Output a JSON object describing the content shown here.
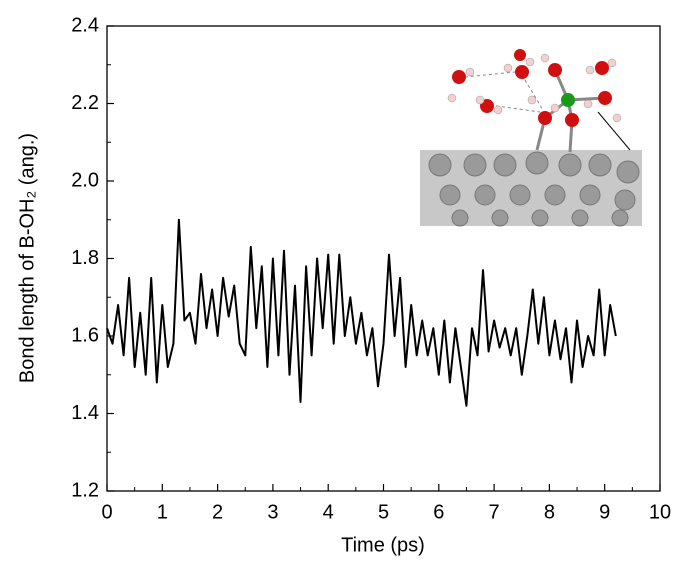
{
  "chart_data": {
    "type": "line",
    "xlabel": "Time (ps)",
    "ylabel": "Bond length of B-OH₂ (ang.)",
    "xlim": [
      0,
      10
    ],
    "xticks": [
      0,
      1,
      2,
      3,
      4,
      5,
      6,
      7,
      8,
      9,
      10
    ],
    "ylim": [
      1.2,
      2.4
    ],
    "yticks": [
      1.2,
      1.4,
      1.6,
      1.8,
      {
        "value": 2,
        "label": "2.0"
      },
      2.2,
      2.4
    ],
    "series": [
      {
        "color": "#000000",
        "x": [
          0,
          0.1,
          0.2,
          0.3,
          0.4,
          0.5,
          0.6,
          0.7,
          0.8,
          0.9,
          1,
          1.1,
          1.2,
          1.3,
          1.4,
          1.5,
          1.6,
          1.7,
          1.8,
          1.9,
          2,
          2.1,
          2.2,
          2.3,
          2.4,
          2.5,
          2.6,
          2.7,
          2.8,
          2.9,
          3,
          3.1,
          3.2,
          3.3,
          3.4,
          3.5,
          3.6,
          3.7,
          3.8,
          3.9,
          4,
          4.1,
          4.2,
          4.3,
          4.4,
          4.5,
          4.6,
          4.7,
          4.8,
          4.9,
          5,
          5.1,
          5.2,
          5.3,
          5.4,
          5.5,
          5.6,
          5.7,
          5.8,
          5.9,
          6,
          6.1,
          6.2,
          6.3,
          6.4,
          6.5,
          6.6,
          6.7,
          6.8,
          6.9,
          7,
          7.1,
          7.2,
          7.3,
          7.4,
          7.5,
          7.6,
          7.7,
          7.8,
          7.9,
          8,
          8.1,
          8.2,
          8.3,
          8.4,
          8.5,
          8.6,
          8.7,
          8.8,
          8.9,
          9,
          9.1,
          9.2
        ],
        "values": [
          1.62,
          1.58,
          1.68,
          1.55,
          1.75,
          1.52,
          1.66,
          1.5,
          1.75,
          1.48,
          1.68,
          1.52,
          1.58,
          1.9,
          1.64,
          1.66,
          1.58,
          1.76,
          1.62,
          1.72,
          1.6,
          1.75,
          1.65,
          1.73,
          1.58,
          1.55,
          1.83,
          1.62,
          1.78,
          1.52,
          1.8,
          1.55,
          1.82,
          1.5,
          1.73,
          1.43,
          1.78,
          1.55,
          1.8,
          1.62,
          1.81,
          1.58,
          1.81,
          1.6,
          1.7,
          1.58,
          1.66,
          1.55,
          1.62,
          1.47,
          1.58,
          1.81,
          1.6,
          1.75,
          1.52,
          1.68,
          1.55,
          1.64,
          1.55,
          1.62,
          1.5,
          1.64,
          1.48,
          1.62,
          1.52,
          1.42,
          1.62,
          1.55,
          1.77,
          1.56,
          1.64,
          1.57,
          1.62,
          1.55,
          1.62,
          1.5,
          1.6,
          1.72,
          1.58,
          1.7,
          1.55,
          1.64,
          1.54,
          1.62,
          1.48,
          1.64,
          1.52,
          1.6,
          1.55,
          1.72,
          1.55,
          1.68,
          1.6
        ]
      }
    ]
  }
}
